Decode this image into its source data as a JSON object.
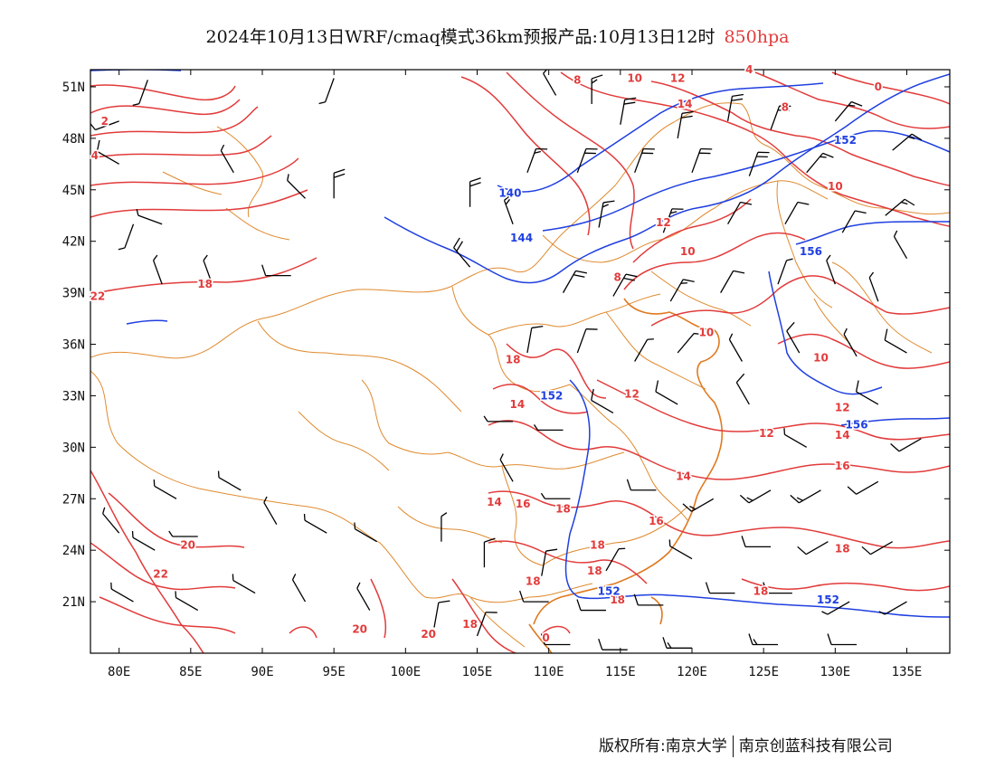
{
  "title": {
    "main": "2024年10月13日WRF/cmaq模式36km预报产品:10月13日12时",
    "level": "850hpa",
    "level_color": "#e23b3b"
  },
  "axes": {
    "lat_ticks": [
      "51N",
      "48N",
      "45N",
      "42N",
      "39N",
      "36N",
      "33N",
      "30N",
      "27N",
      "24N",
      "21N"
    ],
    "lon_ticks": [
      "80E",
      "85E",
      "90E",
      "95E",
      "100E",
      "105E",
      "110E",
      "115E",
      "120E",
      "125E",
      "130E",
      "135E"
    ],
    "lat_values": [
      51,
      48,
      45,
      42,
      39,
      36,
      33,
      30,
      27,
      24,
      21
    ],
    "lon_values": [
      80,
      85,
      90,
      95,
      100,
      105,
      110,
      115,
      120,
      125,
      130,
      135
    ],
    "lon_range": [
      78,
      138
    ],
    "lat_range": [
      18,
      52
    ]
  },
  "colors": {
    "temperature": "#e23b3b",
    "geopotential": "#1f3fe0",
    "boundary": "#e08a2e",
    "wind": "#000000"
  },
  "temperature_labels": [
    {
      "text": "2",
      "lon": 79,
      "lat": 49
    },
    {
      "text": "4",
      "lon": 78.3,
      "lat": 47
    },
    {
      "text": "22",
      "lon": 78.5,
      "lat": 38.8
    },
    {
      "text": "18",
      "lon": 86,
      "lat": 39.5
    },
    {
      "text": "8",
      "lon": 112,
      "lat": 51.4
    },
    {
      "text": "10",
      "lon": 116,
      "lat": 51.5
    },
    {
      "text": "12",
      "lon": 119,
      "lat": 51.5
    },
    {
      "text": "14",
      "lon": 119.5,
      "lat": 50
    },
    {
      "text": "4",
      "lon": 124,
      "lat": 52
    },
    {
      "text": "0",
      "lon": 133,
      "lat": 51
    },
    {
      "text": "8",
      "lon": 126.5,
      "lat": 49.8
    },
    {
      "text": "10",
      "lon": 130,
      "lat": 45.2
    },
    {
      "text": "12",
      "lon": 118,
      "lat": 43.1
    },
    {
      "text": "10",
      "lon": 119.7,
      "lat": 41.4
    },
    {
      "text": "8",
      "lon": 114.8,
      "lat": 39.9
    },
    {
      "text": "10",
      "lon": 121,
      "lat": 36.7
    },
    {
      "text": "10",
      "lon": 129,
      "lat": 35.2
    },
    {
      "text": "18",
      "lon": 107.5,
      "lat": 35.1
    },
    {
      "text": "14",
      "lon": 107.8,
      "lat": 32.5
    },
    {
      "text": "12",
      "lon": 115.8,
      "lat": 33.1
    },
    {
      "text": "12",
      "lon": 125.2,
      "lat": 30.8
    },
    {
      "text": "12",
      "lon": 130.5,
      "lat": 32.3
    },
    {
      "text": "14",
      "lon": 130.5,
      "lat": 30.7
    },
    {
      "text": "16",
      "lon": 130.5,
      "lat": 28.9
    },
    {
      "text": "14",
      "lon": 119.4,
      "lat": 28.3
    },
    {
      "text": "14",
      "lon": 106.2,
      "lat": 26.8
    },
    {
      "text": "16",
      "lon": 108.2,
      "lat": 26.7
    },
    {
      "text": "18",
      "lon": 111,
      "lat": 26.4
    },
    {
      "text": "16",
      "lon": 117.5,
      "lat": 25.7
    },
    {
      "text": "18",
      "lon": 113.4,
      "lat": 24.3
    },
    {
      "text": "18",
      "lon": 113.2,
      "lat": 22.8
    },
    {
      "text": "18",
      "lon": 108.9,
      "lat": 22.2
    },
    {
      "text": "18",
      "lon": 130.5,
      "lat": 24.1
    },
    {
      "text": "18",
      "lon": 124.8,
      "lat": 21.6
    },
    {
      "text": "18",
      "lon": 114.8,
      "lat": 21.1
    },
    {
      "text": "18",
      "lon": 104.5,
      "lat": 19.7
    },
    {
      "text": "20",
      "lon": 84.8,
      "lat": 24.3
    },
    {
      "text": "22",
      "lon": 82.9,
      "lat": 22.6
    },
    {
      "text": "20",
      "lon": 96.8,
      "lat": 19.4
    },
    {
      "text": "20",
      "lon": 101.6,
      "lat": 19.1
    },
    {
      "text": "0",
      "lon": 109.8,
      "lat": 18.9
    }
  ],
  "geopotential_labels": [
    {
      "text": "152",
      "lon": 130.7,
      "lat": 47.9
    },
    {
      "text": "140",
      "lon": 107.3,
      "lat": 44.8
    },
    {
      "text": "144",
      "lon": 108.1,
      "lat": 42.2
    },
    {
      "text": "156",
      "lon": 128.3,
      "lat": 41.4
    },
    {
      "text": "152",
      "lon": 110.2,
      "lat": 33
    },
    {
      "text": "156",
      "lon": 131.5,
      "lat": 31.3
    },
    {
      "text": "152",
      "lon": 114.2,
      "lat": 21.6
    },
    {
      "text": "152",
      "lon": 129.5,
      "lat": 21.1
    }
  ],
  "wind_barbs": [
    {
      "lon": 80,
      "lat": 49,
      "dir": 250,
      "spd": 10
    },
    {
      "lon": 80,
      "lat": 46.5,
      "dir": 300,
      "spd": 10
    },
    {
      "lon": 82,
      "lat": 51.4,
      "dir": 200,
      "spd": 5
    },
    {
      "lon": 88,
      "lat": 46,
      "dir": 330,
      "spd": 5
    },
    {
      "lon": 93,
      "lat": 44.5,
      "dir": 315,
      "spd": 5
    },
    {
      "lon": 83,
      "lat": 43,
      "dir": 290,
      "spd": 5
    },
    {
      "lon": 83,
      "lat": 39.5,
      "dir": 340,
      "spd": 5
    },
    {
      "lon": 86.5,
      "lat": 39.5,
      "dir": 340,
      "spd": 5
    },
    {
      "lon": 92,
      "lat": 40,
      "dir": 270,
      "spd": 10
    },
    {
      "lon": 95,
      "lat": 44.5,
      "dir": 0,
      "spd": 20
    },
    {
      "lon": 81,
      "lat": 43,
      "dir": 200,
      "spd": 5
    },
    {
      "lon": 95,
      "lat": 51.5,
      "dir": 200,
      "spd": 5
    },
    {
      "lon": 104.5,
      "lat": 44,
      "dir": 0,
      "spd": 20
    },
    {
      "lon": 104.5,
      "lat": 40.5,
      "dir": 320,
      "spd": 20
    },
    {
      "lon": 107.5,
      "lat": 43,
      "dir": 340,
      "spd": 15
    },
    {
      "lon": 110.5,
      "lat": 50.5,
      "dir": 330,
      "spd": 10
    },
    {
      "lon": 113,
      "lat": 50,
      "dir": 0,
      "spd": 15
    },
    {
      "lon": 115,
      "lat": 48.8,
      "dir": 10,
      "spd": 20
    },
    {
      "lon": 119,
      "lat": 48,
      "dir": 10,
      "spd": 20
    },
    {
      "lon": 122.5,
      "lat": 49,
      "dir": 10,
      "spd": 20
    },
    {
      "lon": 125.5,
      "lat": 48.5,
      "dir": 20,
      "spd": 20
    },
    {
      "lon": 130,
      "lat": 49,
      "dir": 40,
      "spd": 15
    },
    {
      "lon": 134,
      "lat": 47.3,
      "dir": 50,
      "spd": 15
    },
    {
      "lon": 108.5,
      "lat": 46,
      "dir": 20,
      "spd": 15
    },
    {
      "lon": 112,
      "lat": 46,
      "dir": 20,
      "spd": 20
    },
    {
      "lon": 116,
      "lat": 46,
      "dir": 20,
      "spd": 20
    },
    {
      "lon": 120,
      "lat": 46,
      "dir": 20,
      "spd": 20
    },
    {
      "lon": 124,
      "lat": 45.8,
      "dir": 20,
      "spd": 20
    },
    {
      "lon": 128,
      "lat": 46,
      "dir": 40,
      "spd": 15
    },
    {
      "lon": 133.5,
      "lat": 43.5,
      "dir": 50,
      "spd": 15
    },
    {
      "lon": 113.5,
      "lat": 42.8,
      "dir": 10,
      "spd": 15
    },
    {
      "lon": 118,
      "lat": 42.5,
      "dir": 20,
      "spd": 15
    },
    {
      "lon": 122.5,
      "lat": 43,
      "dir": 30,
      "spd": 10
    },
    {
      "lon": 126.5,
      "lat": 43,
      "dir": 30,
      "spd": 10
    },
    {
      "lon": 130.5,
      "lat": 42.5,
      "dir": 30,
      "spd": 10
    },
    {
      "lon": 135,
      "lat": 41,
      "dir": 330,
      "spd": 5
    },
    {
      "lon": 111,
      "lat": 39,
      "dir": 30,
      "spd": 20
    },
    {
      "lon": 114.5,
      "lat": 38.8,
      "dir": 30,
      "spd": 20
    },
    {
      "lon": 118.5,
      "lat": 38.5,
      "dir": 30,
      "spd": 15
    },
    {
      "lon": 122,
      "lat": 39,
      "dir": 30,
      "spd": 10
    },
    {
      "lon": 126,
      "lat": 39.5,
      "dir": 20,
      "spd": 5
    },
    {
      "lon": 130,
      "lat": 39.5,
      "dir": 340,
      "spd": 5
    },
    {
      "lon": 133,
      "lat": 38.5,
      "dir": 340,
      "spd": 5
    },
    {
      "lon": 108.5,
      "lat": 35.5,
      "dir": 10,
      "spd": 10
    },
    {
      "lon": 112,
      "lat": 35.5,
      "dir": 20,
      "spd": 10
    },
    {
      "lon": 116,
      "lat": 35,
      "dir": 30,
      "spd": 5
    },
    {
      "lon": 119,
      "lat": 35.5,
      "dir": 40,
      "spd": 5
    },
    {
      "lon": 123.5,
      "lat": 35,
      "dir": 330,
      "spd": 5
    },
    {
      "lon": 127.5,
      "lat": 35.5,
      "dir": 330,
      "spd": 10
    },
    {
      "lon": 131.5,
      "lat": 35.3,
      "dir": 330,
      "spd": 5
    },
    {
      "lon": 135,
      "lat": 35.5,
      "dir": 300,
      "spd": 10
    },
    {
      "lon": 107.5,
      "lat": 31.5,
      "dir": 270,
      "spd": 5
    },
    {
      "lon": 111,
      "lat": 31,
      "dir": 270,
      "spd": 5
    },
    {
      "lon": 114.5,
      "lat": 32,
      "dir": 300,
      "spd": 10
    },
    {
      "lon": 119,
      "lat": 32.5,
      "dir": 300,
      "spd": 10
    },
    {
      "lon": 124,
      "lat": 32.5,
      "dir": 330,
      "spd": 10
    },
    {
      "lon": 128,
      "lat": 30,
      "dir": 300,
      "spd": 5
    },
    {
      "lon": 133,
      "lat": 32.5,
      "dir": 300,
      "spd": 10
    },
    {
      "lon": 136,
      "lat": 30.5,
      "dir": 240,
      "spd": 10
    },
    {
      "lon": 107.5,
      "lat": 28,
      "dir": 330,
      "spd": 5
    },
    {
      "lon": 111.5,
      "lat": 27,
      "dir": 270,
      "spd": 5
    },
    {
      "lon": 117.5,
      "lat": 27.5,
      "dir": 270,
      "spd": 10
    },
    {
      "lon": 121.5,
      "lat": 27,
      "dir": 240,
      "spd": 15
    },
    {
      "lon": 125.5,
      "lat": 27.5,
      "dir": 240,
      "spd": 15
    },
    {
      "lon": 129,
      "lat": 27.5,
      "dir": 240,
      "spd": 15
    },
    {
      "lon": 133,
      "lat": 28,
      "dir": 240,
      "spd": 10
    },
    {
      "lon": 80,
      "lat": 25,
      "dir": 320,
      "spd": 5
    },
    {
      "lon": 84,
      "lat": 27,
      "dir": 300,
      "spd": 5
    },
    {
      "lon": 88.5,
      "lat": 27.5,
      "dir": 300,
      "spd": 5
    },
    {
      "lon": 82.5,
      "lat": 24,
      "dir": 300,
      "spd": 5
    },
    {
      "lon": 85.5,
      "lat": 24.8,
      "dir": 270,
      "spd": 5
    },
    {
      "lon": 91,
      "lat": 25.5,
      "dir": 330,
      "spd": 5
    },
    {
      "lon": 94.5,
      "lat": 25,
      "dir": 300,
      "spd": 5
    },
    {
      "lon": 98,
      "lat": 24.5,
      "dir": 300,
      "spd": 5
    },
    {
      "lon": 102.5,
      "lat": 24.5,
      "dir": 0,
      "spd": 5
    },
    {
      "lon": 105.5,
      "lat": 23,
      "dir": 0,
      "spd": 10
    },
    {
      "lon": 109.5,
      "lat": 22.5,
      "dir": 10,
      "spd": 10
    },
    {
      "lon": 114,
      "lat": 22.8,
      "dir": 30,
      "spd": 5
    },
    {
      "lon": 120,
      "lat": 23.5,
      "dir": 300,
      "spd": 5
    },
    {
      "lon": 125.5,
      "lat": 24.2,
      "dir": 270,
      "spd": 10
    },
    {
      "lon": 129.5,
      "lat": 24.5,
      "dir": 240,
      "spd": 10
    },
    {
      "lon": 134,
      "lat": 24.5,
      "dir": 240,
      "spd": 10
    },
    {
      "lon": 81,
      "lat": 21,
      "dir": 300,
      "spd": 5
    },
    {
      "lon": 85.5,
      "lat": 20.5,
      "dir": 300,
      "spd": 5
    },
    {
      "lon": 89.5,
      "lat": 21.5,
      "dir": 300,
      "spd": 5
    },
    {
      "lon": 93,
      "lat": 21,
      "dir": 330,
      "spd": 5
    },
    {
      "lon": 97.5,
      "lat": 20.5,
      "dir": 330,
      "spd": 5
    },
    {
      "lon": 102,
      "lat": 19.5,
      "dir": 10,
      "spd": 10
    },
    {
      "lon": 105,
      "lat": 19,
      "dir": 20,
      "spd": 10
    },
    {
      "lon": 110,
      "lat": 21,
      "dir": 270,
      "spd": 10
    },
    {
      "lon": 114,
      "lat": 20.5,
      "dir": 270,
      "spd": 10
    },
    {
      "lon": 118,
      "lat": 20.8,
      "dir": 270,
      "spd": 10
    },
    {
      "lon": 123,
      "lat": 21.5,
      "dir": 270,
      "spd": 10
    },
    {
      "lon": 127,
      "lat": 21.5,
      "dir": 270,
      "spd": 10
    },
    {
      "lon": 131,
      "lat": 21,
      "dir": 240,
      "spd": 5
    },
    {
      "lon": 135,
      "lat": 21,
      "dir": 240,
      "spd": 5
    },
    {
      "lon": 111.5,
      "lat": 18.5,
      "dir": 270,
      "spd": 10
    },
    {
      "lon": 115.5,
      "lat": 18.2,
      "dir": 270,
      "spd": 10
    },
    {
      "lon": 120,
      "lat": 18.3,
      "dir": 270,
      "spd": 15
    },
    {
      "lon": 126,
      "lat": 18.5,
      "dir": 270,
      "spd": 15
    },
    {
      "lon": 131.5,
      "lat": 18.5,
      "dir": 270,
      "spd": 10
    }
  ],
  "footer": {
    "left": "版权所有:南京大学",
    "right": "南京创蓝科技有限公司"
  }
}
